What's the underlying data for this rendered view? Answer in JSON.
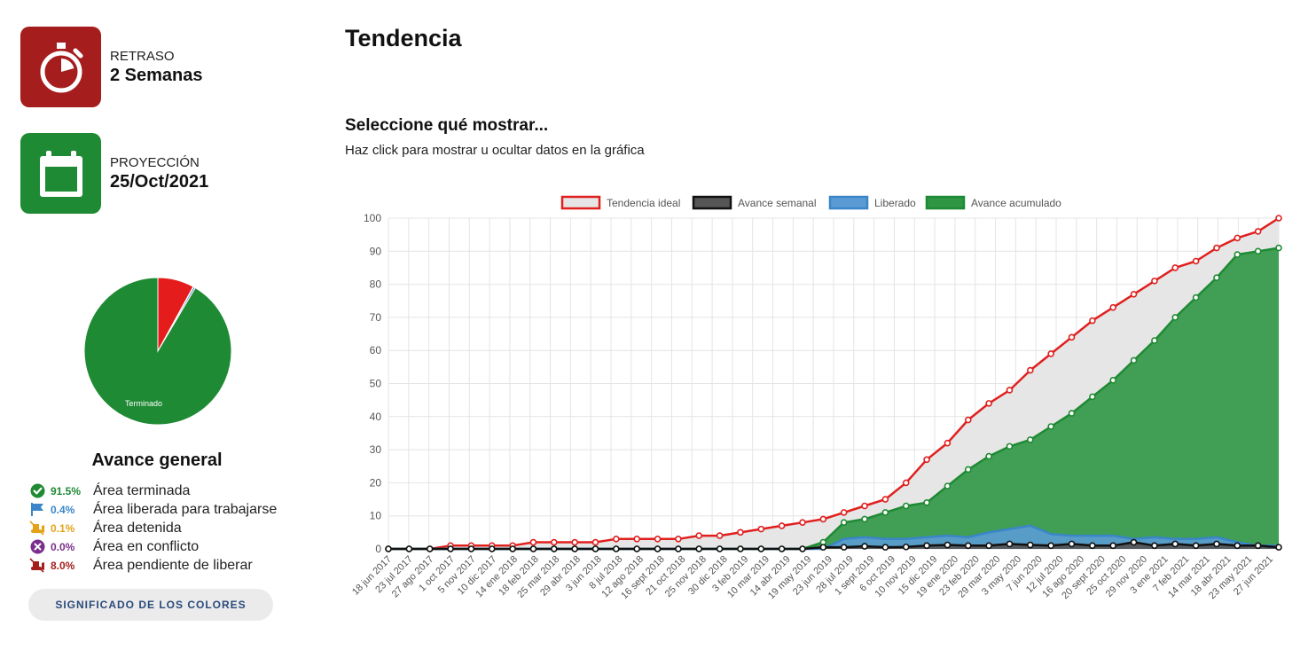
{
  "stats": {
    "delay": {
      "label": "RETRASO",
      "value": "2 Semanas",
      "color": "#a51d1d",
      "icon": "stopwatch-icon"
    },
    "projection": {
      "label": "PROYECCIÓN",
      "value": "25/Oct/2021",
      "color": "#1f8a34",
      "icon": "calendar-icon"
    }
  },
  "pie": {
    "slices": [
      {
        "name": "Terminado",
        "percent": 91.5,
        "color": "#1f8a34"
      },
      {
        "name": "Liberado",
        "percent": 0.4,
        "color": "#3a86c8"
      },
      {
        "name": "Detenida",
        "percent": 0.1,
        "color": "#e3a21a"
      },
      {
        "name": "Conflicto",
        "percent": 0.0,
        "color": "#7b2e8c"
      },
      {
        "name": "Pendiente",
        "percent": 8.0,
        "color": "#e51c1c"
      }
    ],
    "label": "Terminado"
  },
  "avance": {
    "title": "Avance general",
    "items": [
      {
        "pct": "91.5%",
        "label": "Área terminada",
        "color": "#1f8a34",
        "icon": "check-circle-icon"
      },
      {
        "pct": "0.4%",
        "label": "Área liberada para trabajarse",
        "color": "#3a86c8",
        "icon": "flag-icon"
      },
      {
        "pct": "0.1%",
        "label": "Área detenida",
        "color": "#e3a21a",
        "icon": "bulldozer-icon"
      },
      {
        "pct": "0.0%",
        "label": "Área en conflicto",
        "color": "#7b2e8c",
        "icon": "x-circle-icon"
      },
      {
        "pct": "8.0%",
        "label": "Área pendiente de liberar",
        "color": "#a51d1d",
        "icon": "bulldozer-off-icon"
      }
    ],
    "button": "SIGNIFICADO DE LOS COLORES"
  },
  "main": {
    "title": "Tendencia",
    "section_title": "Seleccione qué mostrar...",
    "section_sub": "Haz click para mostrar u ocultar datos en la gráfica"
  },
  "chart_data": {
    "type": "area",
    "ylim": [
      0,
      100
    ],
    "y_ticks": [
      0,
      10,
      20,
      30,
      40,
      50,
      60,
      70,
      80,
      90,
      100
    ],
    "grid": true,
    "legend_position": "top",
    "x_tick_labels": [
      "18 jun 2017",
      "23 jul 2017",
      "27 ago 2017",
      "1 oct 2017",
      "5 nov 2017",
      "10 dic 2017",
      "14 ene 2018",
      "18 feb 2018",
      "25 mar 2018",
      "29 abr 2018",
      "3 jun 2018",
      "8 jul 2018",
      "12 ago 2018",
      "16 sept 2018",
      "21 oct 2018",
      "25 nov 2018",
      "30 dic 2018",
      "3 feb 2019",
      "10 mar 2019",
      "14 abr 2019",
      "19 may 2019",
      "23 jun 2019",
      "28 jul 2019",
      "1 sept 2019",
      "6 oct 2019",
      "10 nov 2019",
      "15 dic 2019",
      "19 ene 2020",
      "23 feb 2020",
      "29 mar 2020",
      "3 may 2020",
      "7 jun 2020",
      "12 jul 2020",
      "16 ago 2020",
      "20 sept 2020",
      "25 oct 2020",
      "29 nov 2020",
      "3 ene 2021",
      "7 feb 2021",
      "14 mar 2021",
      "18 abr 2021",
      "23 may 2021",
      "27 jun 2021"
    ],
    "series": [
      {
        "name": "Tendencia ideal",
        "color": "#e0201f",
        "fill": "#e6e6e6",
        "values": [
          0,
          0,
          0,
          1,
          1,
          1,
          1,
          2,
          2,
          2,
          2,
          3,
          3,
          3,
          3,
          4,
          4,
          5,
          6,
          7,
          8,
          9,
          11,
          13,
          15,
          20,
          27,
          32,
          39,
          44,
          48,
          54,
          59,
          64,
          69,
          73,
          77,
          81,
          85,
          87,
          91,
          94,
          96,
          100
        ]
      },
      {
        "name": "Avance semanal",
        "color": "#111111",
        "fill": "#555555",
        "values": [
          0,
          0,
          0,
          0,
          0,
          0,
          0,
          0,
          0,
          0,
          0,
          0,
          0,
          0,
          0,
          0,
          0,
          0,
          0,
          0,
          0,
          0.5,
          0.5,
          0.8,
          0.5,
          0.6,
          1,
          1.2,
          1,
          1,
          1.5,
          1.2,
          1,
          1.5,
          1,
          1,
          2,
          1,
          1.5,
          1,
          1.5,
          1,
          1,
          0.5
        ]
      },
      {
        "name": "Liberado",
        "color": "#3a86c8",
        "fill": "#5b9bd5",
        "values": [
          0,
          0,
          0,
          0,
          0,
          0,
          0,
          0,
          0,
          0,
          0,
          0,
          0,
          0,
          0,
          0,
          0,
          0,
          0,
          0,
          0,
          0,
          3,
          3.5,
          3,
          3,
          3.5,
          4,
          3.5,
          5,
          6,
          7,
          4.5,
          4,
          4,
          4,
          3,
          3.5,
          3,
          3,
          3.5,
          2,
          1,
          1
        ]
      },
      {
        "name": "Avance acumulado",
        "color": "#1f8a34",
        "fill": "#2e9645",
        "values": [
          0,
          0,
          0,
          0,
          0,
          0,
          0,
          0,
          0,
          0,
          0,
          0,
          0,
          0,
          0,
          0,
          0,
          0,
          0,
          0,
          0,
          2,
          8,
          9,
          11,
          13,
          14,
          19,
          24,
          28,
          31,
          33,
          37,
          41,
          46,
          51,
          57,
          63,
          70,
          76,
          82,
          89,
          90,
          91
        ]
      }
    ]
  }
}
